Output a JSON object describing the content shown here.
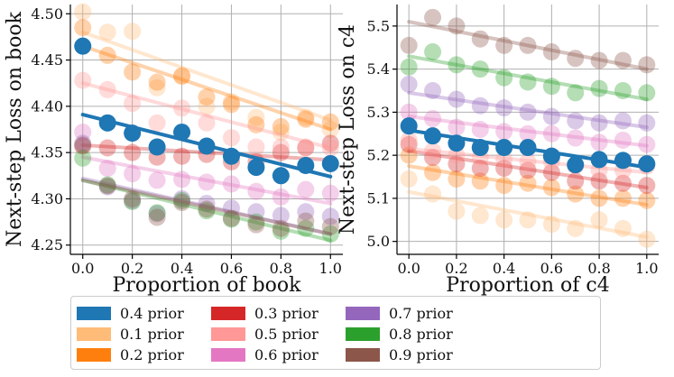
{
  "chart_data": [
    {
      "type": "scatter",
      "xlabel": "Proportion of book",
      "ylabel": "Next-step Loss on book",
      "xlim": [
        -0.05,
        1.05
      ],
      "ylim": [
        4.24,
        4.51
      ],
      "xticks": [
        0.0,
        0.2,
        0.4,
        0.6,
        0.8,
        1.0
      ],
      "xtick_labels": [
        "0.0",
        "0.2",
        "0.4",
        "0.6",
        "0.8",
        "1.0"
      ],
      "yticks": [
        4.25,
        4.3,
        4.35,
        4.4,
        4.45,
        4.5
      ],
      "ytick_labels": [
        "4.25",
        "4.30",
        "4.35",
        "4.40",
        "4.45",
        "4.50"
      ],
      "grid": true,
      "x": [
        0.0,
        0.1,
        0.2,
        0.3,
        0.4,
        0.5,
        0.6,
        0.7,
        0.8,
        0.9,
        1.0
      ],
      "series": [
        {
          "name": "0.1 prior",
          "color": "#ffbb78",
          "highlight": false,
          "values": [
            4.502,
            4.48,
            4.481,
            4.42,
            4.432,
            4.4,
            4.405,
            4.388,
            4.372,
            4.388,
            4.375
          ],
          "fit": [
            4.48,
            4.385
          ]
        },
        {
          "name": "0.2 prior",
          "color": "#ff7f0e",
          "highlight": false,
          "values": [
            4.485,
            4.455,
            4.437,
            4.426,
            4.433,
            4.41,
            4.402,
            4.38,
            4.378,
            4.386,
            4.383
          ],
          "fit": [
            4.465,
            4.375
          ]
        },
        {
          "name": "0.3 prior",
          "color": "#d62728",
          "highlight": false,
          "values": [
            4.357,
            4.355,
            4.35,
            4.345,
            4.346,
            4.348,
            4.34,
            4.34,
            4.35,
            4.355,
            4.36
          ],
          "fit": [
            4.358,
            4.342
          ]
        },
        {
          "name": "0.4 prior",
          "color": "#1f77b4",
          "highlight": true,
          "values": [
            4.465,
            4.382,
            4.371,
            4.356,
            4.372,
            4.357,
            4.346,
            4.334,
            4.325,
            4.336,
            4.338
          ],
          "fit": [
            4.391,
            4.324
          ]
        },
        {
          "name": "0.5 prior",
          "color": "#ff9896",
          "highlight": false,
          "values": [
            4.428,
            4.418,
            4.403,
            4.382,
            4.398,
            4.382,
            4.366,
            4.356,
            4.356,
            4.356,
            4.355
          ],
          "fit": [
            4.425,
            4.355
          ]
        },
        {
          "name": "0.6 prior",
          "color": "#e377c2",
          "highlight": false,
          "values": [
            4.372,
            4.333,
            4.327,
            4.32,
            4.321,
            4.318,
            4.316,
            4.308,
            4.302,
            4.31,
            4.306
          ],
          "fit": [
            4.345,
            4.295
          ]
        },
        {
          "name": "0.7 prior",
          "color": "#9467bd",
          "highlight": false,
          "values": [
            4.36,
            4.313,
            4.298,
            4.284,
            4.3,
            4.295,
            4.29,
            4.286,
            4.282,
            4.286,
            4.281
          ],
          "fit": [
            4.322,
            4.262
          ]
        },
        {
          "name": "0.8 prior",
          "color": "#2ca02c",
          "highlight": false,
          "values": [
            4.344,
            4.315,
            4.297,
            4.285,
            4.298,
            4.287,
            4.278,
            4.275,
            4.265,
            4.268,
            4.262
          ],
          "fit": [
            4.32,
            4.255
          ]
        },
        {
          "name": "0.9 prior",
          "color": "#8c564b",
          "highlight": false,
          "values": [
            4.358,
            4.314,
            4.3,
            4.28,
            4.296,
            4.289,
            4.279,
            4.272,
            4.268,
            4.276,
            4.27
          ],
          "fit": [
            4.32,
            4.262
          ]
        }
      ]
    },
    {
      "type": "scatter",
      "xlabel": "Proportion of c4",
      "ylabel": "Next-step Loss on c4",
      "xlim": [
        -0.05,
        1.05
      ],
      "ylim": [
        4.97,
        5.55
      ],
      "xticks": [
        0.0,
        0.2,
        0.4,
        0.6,
        0.8,
        1.0
      ],
      "xtick_labels": [
        "0.0",
        "0.2",
        "0.4",
        "0.6",
        "0.8",
        "1.0"
      ],
      "yticks": [
        5.0,
        5.1,
        5.2,
        5.3,
        5.4,
        5.5
      ],
      "ytick_labels": [
        "5.0",
        "5.1",
        "5.2",
        "5.3",
        "5.4",
        "5.5"
      ],
      "grid": true,
      "x": [
        0.0,
        0.1,
        0.2,
        0.3,
        0.4,
        0.5,
        0.6,
        0.7,
        0.8,
        0.9,
        1.0
      ],
      "series": [
        {
          "name": "0.1 prior",
          "color": "#ffbb78",
          "highlight": false,
          "values": [
            5.145,
            5.11,
            5.07,
            5.06,
            5.05,
            5.05,
            5.04,
            5.03,
            5.05,
            5.03,
            5.005
          ],
          "fit": [
            5.115,
            5.01
          ]
        },
        {
          "name": "0.2 prior",
          "color": "#ff7f0e",
          "highlight": false,
          "values": [
            5.2,
            5.16,
            5.145,
            5.14,
            5.13,
            5.135,
            5.125,
            5.11,
            5.1,
            5.1,
            5.095
          ],
          "fit": [
            5.175,
            5.085
          ]
        },
        {
          "name": "0.3 prior",
          "color": "#d62728",
          "highlight": false,
          "values": [
            5.225,
            5.195,
            5.18,
            5.17,
            5.17,
            5.165,
            5.16,
            5.14,
            5.14,
            5.135,
            5.13
          ],
          "fit": [
            5.21,
            5.125
          ]
        },
        {
          "name": "0.4 prior",
          "color": "#1f77b4",
          "highlight": true,
          "values": [
            5.268,
            5.245,
            5.228,
            5.218,
            5.218,
            5.218,
            5.198,
            5.178,
            5.19,
            5.188,
            5.18
          ],
          "fit": [
            5.258,
            5.172
          ]
        },
        {
          "name": "0.5 prior",
          "color": "#ff9896",
          "highlight": false,
          "values": [
            5.235,
            5.21,
            5.2,
            5.195,
            5.19,
            5.185,
            5.185,
            5.175,
            5.165,
            5.165,
            5.175
          ],
          "fit": [
            5.215,
            5.16
          ]
        },
        {
          "name": "0.6 prior",
          "color": "#e377c2",
          "highlight": false,
          "values": [
            5.3,
            5.285,
            5.265,
            5.26,
            5.255,
            5.25,
            5.25,
            5.24,
            5.23,
            5.235,
            5.225
          ],
          "fit": [
            5.29,
            5.222
          ]
        },
        {
          "name": "0.7 prior",
          "color": "#9467bd",
          "highlight": false,
          "values": [
            5.365,
            5.35,
            5.33,
            5.315,
            5.31,
            5.3,
            5.29,
            5.28,
            5.275,
            5.28,
            5.275
          ],
          "fit": [
            5.345,
            5.265
          ]
        },
        {
          "name": "0.8 prior",
          "color": "#2ca02c",
          "highlight": false,
          "values": [
            5.405,
            5.44,
            5.41,
            5.4,
            5.38,
            5.37,
            5.36,
            5.345,
            5.355,
            5.35,
            5.345
          ],
          "fit": [
            5.43,
            5.33
          ]
        },
        {
          "name": "0.9 prior",
          "color": "#8c564b",
          "highlight": false,
          "values": [
            5.455,
            5.52,
            5.5,
            5.47,
            5.455,
            5.455,
            5.44,
            5.425,
            5.42,
            5.42,
            5.41
          ],
          "fit": [
            5.51,
            5.4
          ]
        }
      ]
    }
  ],
  "legend": {
    "placement": "bottom",
    "items": [
      {
        "label": "0.4 prior",
        "color": "#1f77b4"
      },
      {
        "label": "0.1 prior",
        "color": "#ffbb78"
      },
      {
        "label": "0.2 prior",
        "color": "#ff7f0e"
      },
      {
        "label": "0.3 prior",
        "color": "#d62728"
      },
      {
        "label": "0.5 prior",
        "color": "#ff9896"
      },
      {
        "label": "0.6 prior",
        "color": "#e377c2"
      },
      {
        "label": "0.7 prior",
        "color": "#9467bd"
      },
      {
        "label": "0.8 prior",
        "color": "#2ca02c"
      },
      {
        "label": "0.9 prior",
        "color": "#8c564b"
      }
    ]
  }
}
